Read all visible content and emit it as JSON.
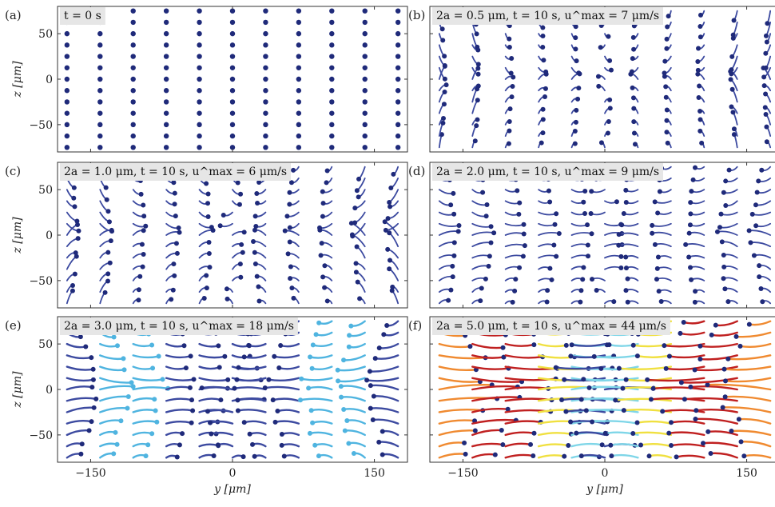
{
  "figure": {
    "xlabel": "y [μm]",
    "ylabel": "z [μm]",
    "xticks": [
      -150,
      0,
      150
    ],
    "yticks": [
      50,
      0,
      -50
    ],
    "xlim": [
      -185,
      185
    ],
    "ylim": [
      -80,
      80
    ]
  },
  "chart_data": [
    {
      "type": "scatter",
      "panel": "(a)",
      "annotation": "t = 0 s",
      "t_s": 0,
      "diameter_um": null,
      "umax_um_s": null
    },
    {
      "type": "line",
      "panel": "(b)",
      "annotation": "2a = 0.5 μm, t = 10 s, u^max = 7 μm/s",
      "t_s": 10,
      "diameter_um": 0.5,
      "umax_um_s": 7
    },
    {
      "type": "line",
      "panel": "(c)",
      "annotation": "2a = 1.0 μm, t = 10 s, u^max = 6 μm/s",
      "t_s": 10,
      "diameter_um": 1.0,
      "umax_um_s": 6
    },
    {
      "type": "line",
      "panel": "(d)",
      "annotation": "2a = 2.0 μm, t = 10 s, u^max = 9 μm/s",
      "t_s": 10,
      "diameter_um": 2.0,
      "umax_um_s": 9
    },
    {
      "type": "line",
      "panel": "(e)",
      "annotation": "2a = 3.0 μm, t = 10 s, u^max = 18 μm/s",
      "t_s": 10,
      "diameter_um": 3.0,
      "umax_um_s": 18
    },
    {
      "type": "line",
      "panel": "(f)",
      "annotation": "2a = 5.0 μm, t = 10 s, u^max = 44 μm/s",
      "t_s": 10,
      "diameter_um": 5.0,
      "umax_um_s": 44
    }
  ],
  "grid": {
    "y_positions": [
      -175,
      -140,
      -105,
      -70,
      -35,
      0,
      35,
      70,
      105,
      140,
      175
    ],
    "z_positions": [
      -75,
      -62.5,
      -50,
      -37.5,
      -25,
      -12.5,
      0,
      12.5,
      25,
      37.5,
      50,
      62.5,
      75
    ]
  },
  "colors": {
    "dot": "#1f2a7a",
    "track": "#3c4aa0",
    "light": "#4fb4e0",
    "cyan": "#7fd6e8",
    "yellow": "#f0e040",
    "orange": "#f08a30",
    "red": "#c02020",
    "annot_bg": "#e6e6e6",
    "frame": "#333333"
  }
}
